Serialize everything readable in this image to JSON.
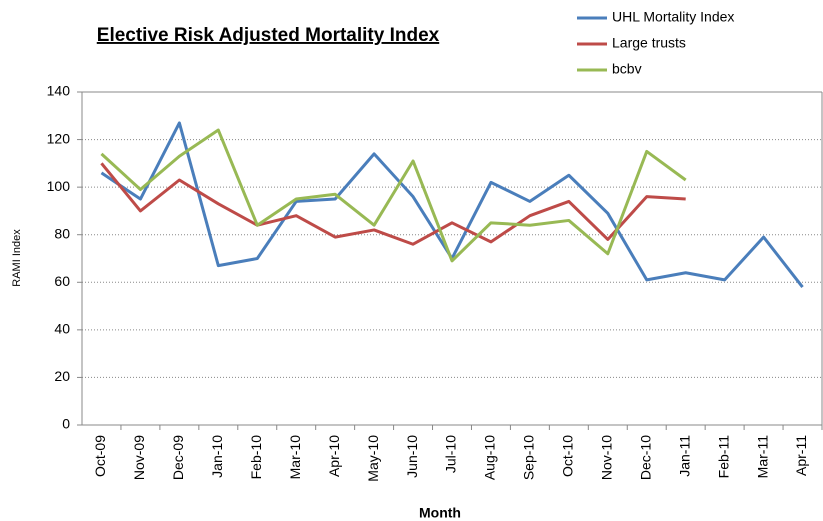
{
  "chart_data": {
    "type": "line",
    "title": "Elective Risk Adjusted Mortality Index",
    "x_label": "Month",
    "y_label": "RAMI Index",
    "categories": [
      "Oct-09",
      "Nov-09",
      "Dec-09",
      "Jan-10",
      "Feb-10",
      "Mar-10",
      "Apr-10",
      "May-10",
      "Jun-10",
      "Jul-10",
      "Aug-10",
      "Sep-10",
      "Oct-10",
      "Nov-10",
      "Dec-10",
      "Jan-11",
      "Feb-11",
      "Mar-11",
      "Apr-11"
    ],
    "series": [
      {
        "name": "UHL Mortality Index",
        "color": "#4a7ebb",
        "values": [
          106,
          95,
          127,
          67,
          70,
          94,
          95,
          114,
          96,
          70,
          102,
          94,
          105,
          89,
          61,
          64,
          61,
          79,
          58
        ]
      },
      {
        "name": "Large trusts",
        "color": "#be4b48",
        "values": [
          110,
          90,
          103,
          93,
          84,
          88,
          79,
          82,
          76,
          85,
          77,
          88,
          94,
          78,
          96,
          95,
          null,
          null,
          null
        ]
      },
      {
        "name": "bcbv",
        "color": "#98b954",
        "values": [
          114,
          99,
          113,
          124,
          84,
          95,
          97,
          84,
          111,
          69,
          85,
          84,
          86,
          72,
          115,
          103,
          null,
          null,
          null
        ]
      }
    ],
    "ylim": [
      0,
      140
    ],
    "yticks": [
      0,
      20,
      40,
      60,
      80,
      100,
      120,
      140
    ],
    "grid": true,
    "legend": "top-right"
  }
}
